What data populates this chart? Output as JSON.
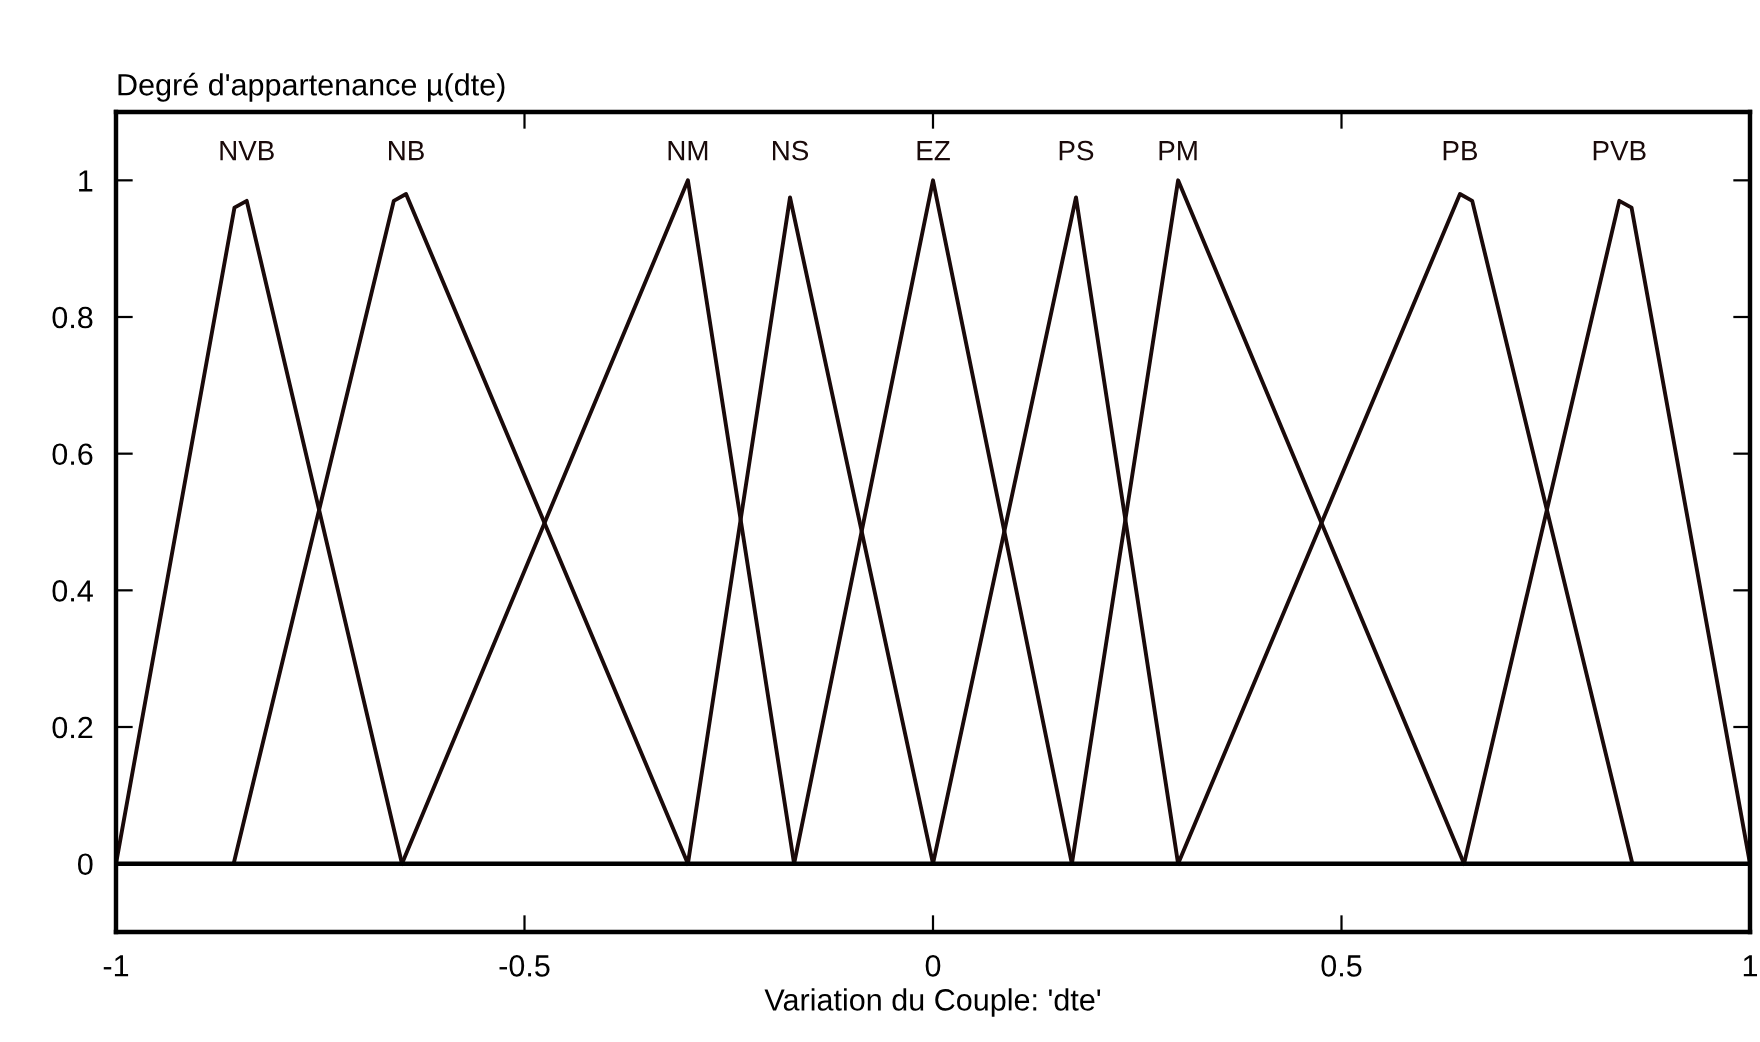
{
  "chart_data": {
    "type": "line",
    "title": "Degré d'appartenance µ(dte)",
    "xlabel": "Variation du Couple: 'dte'",
    "xlim": [
      -1,
      1
    ],
    "xticks": [
      -1,
      -0.5,
      0,
      0.5,
      1
    ],
    "ylim": [
      -0.1,
      1.1
    ],
    "yticks": [
      0,
      0.2,
      0.4,
      0.6,
      0.8,
      1
    ],
    "grid": false,
    "legend": false,
    "marker": "none",
    "line_style": "solid",
    "ref_lines": [
      {
        "axis": "y",
        "value": 0,
        "color": "#000000"
      }
    ],
    "series": [
      {
        "name": "NVB",
        "color": "#1a0a0a",
        "x": [
          -1,
          -0.855,
          -0.84,
          -0.65
        ],
        "values": [
          0,
          0.96,
          0.97,
          0
        ]
      },
      {
        "name": "NB",
        "color": "#1a0a0a",
        "x": [
          -0.856,
          -0.66,
          -0.645,
          -0.3
        ],
        "values": [
          0,
          0.97,
          0.98,
          0
        ]
      },
      {
        "name": "NM",
        "color": "#1a0a0a",
        "x": [
          -0.65,
          -0.3,
          -0.17
        ],
        "values": [
          0,
          1,
          0
        ]
      },
      {
        "name": "NS",
        "color": "#1a0a0a",
        "x": [
          -0.3,
          -0.175,
          0
        ],
        "values": [
          0,
          0.975,
          0
        ]
      },
      {
        "name": "EZ",
        "color": "#1a0a0a",
        "x": [
          -0.17,
          0,
          0.17
        ],
        "values": [
          0,
          1,
          0
        ]
      },
      {
        "name": "PS",
        "color": "#1a0a0a",
        "x": [
          0,
          0.175,
          0.3
        ],
        "values": [
          0,
          0.975,
          0
        ]
      },
      {
        "name": "PM",
        "color": "#1a0a0a",
        "x": [
          0.17,
          0.3,
          0.65
        ],
        "values": [
          0,
          1,
          0
        ]
      },
      {
        "name": "PB",
        "color": "#1a0a0a",
        "x": [
          0.3,
          0.645,
          0.66,
          0.856
        ],
        "values": [
          0,
          0.98,
          0.97,
          0
        ]
      },
      {
        "name": "PVB",
        "color": "#1a0a0a",
        "x": [
          0.65,
          0.84,
          0.855,
          1
        ],
        "values": [
          0,
          0.97,
          0.96,
          0
        ]
      }
    ]
  }
}
